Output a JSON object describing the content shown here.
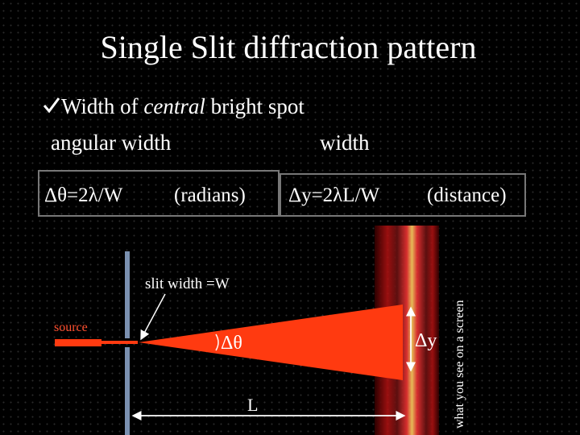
{
  "header": {
    "title": "Single Slit diffraction pattern"
  },
  "bullet": {
    "parts": [
      "Width of",
      "central",
      "bright spot"
    ]
  },
  "labels": {
    "left": "angular width",
    "right": "width"
  },
  "formulas": [
    {
      "formula": "Δθ=2λ/W",
      "unit": "(radians)"
    },
    {
      "formula": "Δy=2λL/W",
      "unit": "(distance)"
    }
  ],
  "diagram": {
    "slit_label": "slit width =W",
    "source": "source",
    "angle": "Δθ",
    "distance": "L",
    "spread": "Δy",
    "screen_caption": "what you see on a screen"
  }
}
